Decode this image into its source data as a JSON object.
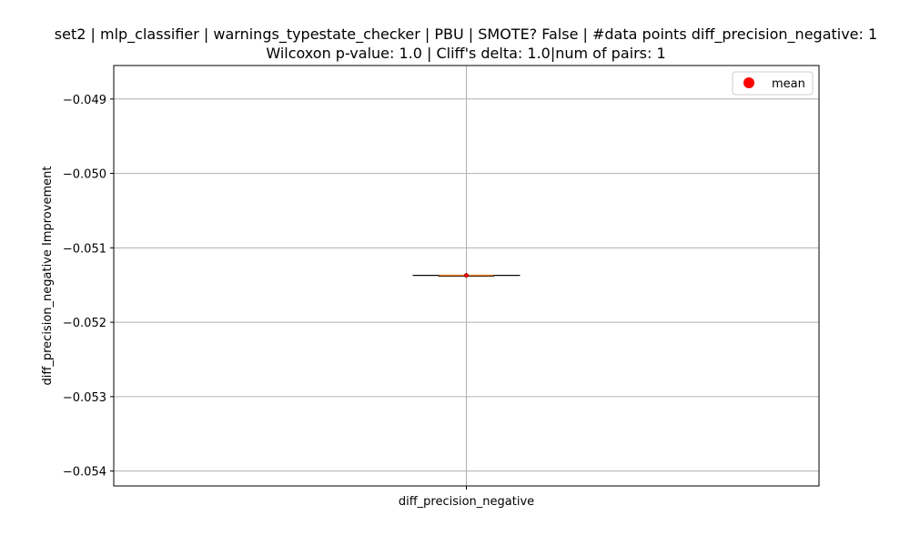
{
  "chart_data": {
    "type": "box",
    "title_line1": "set2 | mlp_classifier | warnings_typestate_checker | PBU | SMOTE? False | #data points diff_precision_negative: 1",
    "title_line2": "Wilcoxon p-value: 1.0 | Cliff's delta: 1.0|num of pairs: 1",
    "xlabel": "",
    "ylabel": "diff_precision_negative Improvement",
    "categories": [
      "diff_precision_negative"
    ],
    "ylim": [
      -0.0542,
      -0.04855
    ],
    "yticks": [
      -0.049,
      -0.05,
      -0.051,
      -0.052,
      -0.053,
      -0.054
    ],
    "ytick_labels": [
      "−0.049",
      "−0.050",
      "−0.051",
      "−0.052",
      "−0.053",
      "−0.054"
    ],
    "series": [
      {
        "name": "diff_precision_negative",
        "min": -0.05137,
        "q1": -0.05137,
        "median": -0.05137,
        "q3": -0.05137,
        "max": -0.05137,
        "mean": -0.05137
      }
    ],
    "legend": {
      "entries": [
        "mean"
      ],
      "position": "top-right"
    },
    "grid": true,
    "colors": {
      "median": "#e07b28",
      "mean": "#ff0000",
      "box": "#000000",
      "grid": "#b0b0b0"
    }
  }
}
